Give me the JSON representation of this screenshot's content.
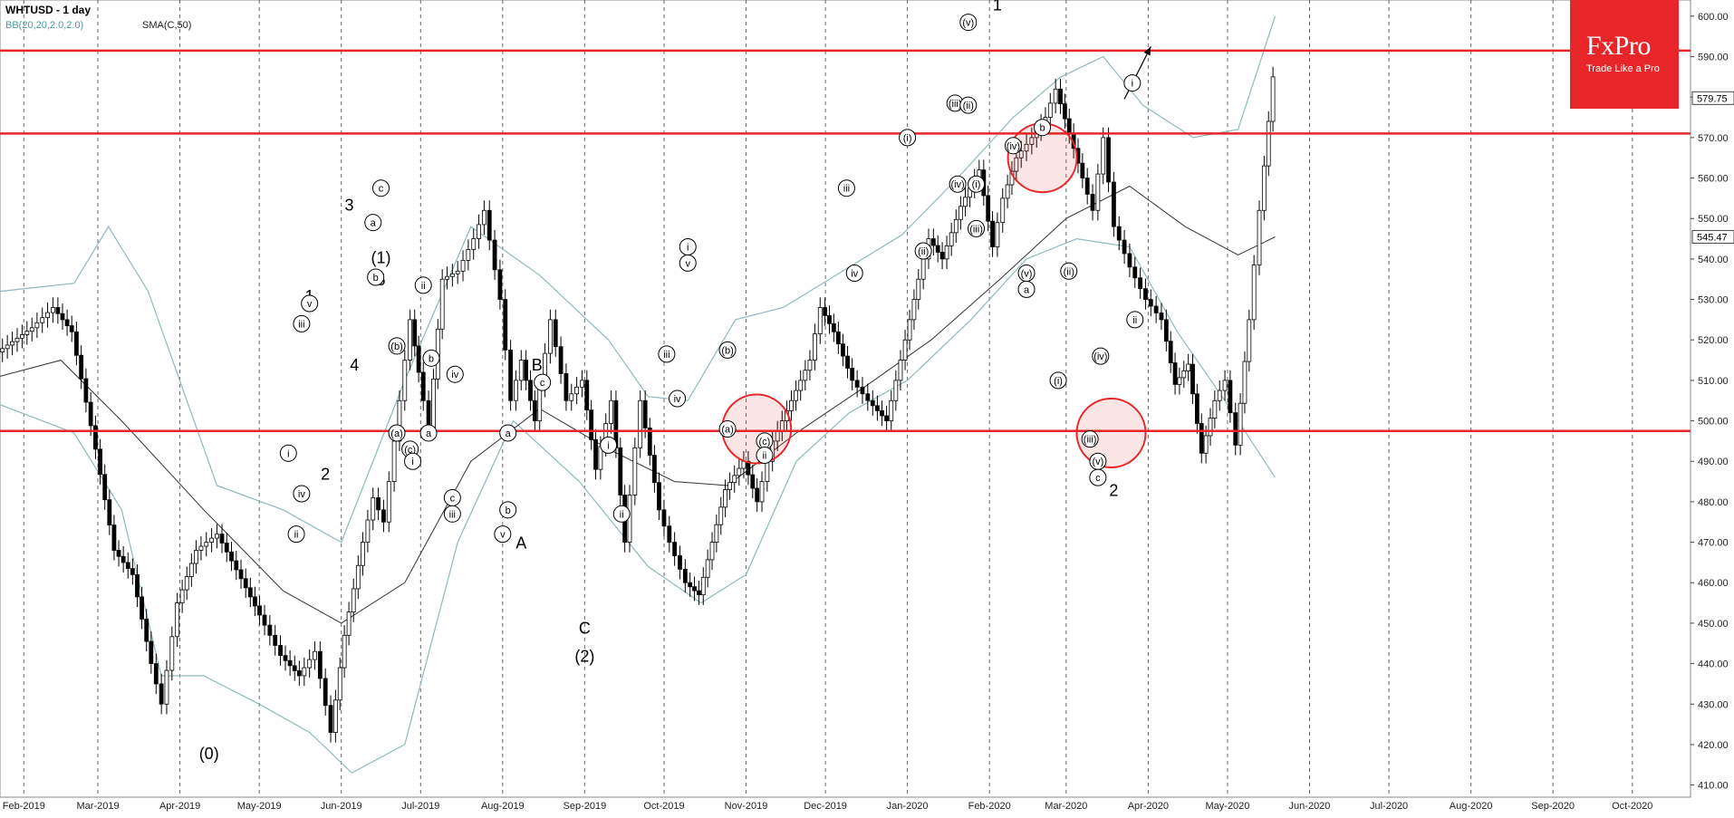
{
  "header": {
    "symbol": "WHTUSD",
    "timeframe_label": "WHTUSD - 1 day",
    "bb_label": "BB(20,20,2.0,2.0)",
    "sma_label": "SMA(C,50)"
  },
  "brand": {
    "name": "FxPro",
    "tagline": "Trade Like a Pro",
    "color": "#e8262a"
  },
  "chart_data": {
    "type": "line",
    "subtype": "candlestick",
    "title": "WHTUSD - 1 day",
    "xlabel": "",
    "ylabel": "",
    "ylim": [
      407,
      604
    ],
    "xlim": [
      "2019-01-23",
      "2020-10-23"
    ],
    "grid": true,
    "y_ticks": [
      "410.00",
      "420.00",
      "430.00",
      "440.00",
      "450.00",
      "460.00",
      "470.00",
      "480.00",
      "490.00",
      "500.00",
      "510.00",
      "520.00",
      "530.00",
      "540.00",
      "550.00",
      "560.00",
      "570.00",
      "580.00",
      "590.00",
      "600.00"
    ],
    "x_ticks": [
      "Feb-2019",
      "Mar-2019",
      "Apr-2019",
      "May-2019",
      "Jun-2019",
      "Jul-2019",
      "Aug-2019",
      "Sep-2019",
      "Oct-2019",
      "Nov-2019",
      "Dec-2019",
      "Jan-2020",
      "Feb-2020",
      "Mar-2020",
      "Apr-2020",
      "May-2020",
      "Jun-2020",
      "Jul-2020",
      "Aug-2020",
      "Sep-2020",
      "Oct-2020"
    ],
    "x_tick_dates": [
      "2019-02-01",
      "2019-03-01",
      "2019-04-01",
      "2019-05-01",
      "2019-06-01",
      "2019-07-01",
      "2019-08-01",
      "2019-09-01",
      "2019-10-01",
      "2019-11-01",
      "2019-12-01",
      "2020-01-01",
      "2020-02-01",
      "2020-03-01",
      "2020-04-01",
      "2020-05-01",
      "2020-06-01",
      "2020-07-01",
      "2020-08-01",
      "2020-09-01",
      "2020-10-01"
    ],
    "price_labels": [
      {
        "value": 579.75,
        "text": "579.75"
      },
      {
        "value": 545.47,
        "text": "545.47"
      }
    ],
    "horizontal_levels": [
      591.5,
      571,
      497.5
    ],
    "price_path": [
      [
        "2019-01-23",
        517
      ],
      [
        "2019-02-05",
        523
      ],
      [
        "2019-02-13",
        528
      ],
      [
        "2019-02-20",
        522
      ],
      [
        "2019-03-01",
        493
      ],
      [
        "2019-03-08",
        468
      ],
      [
        "2019-03-15",
        462
      ],
      [
        "2019-03-22",
        440
      ],
      [
        "2019-03-26",
        430
      ],
      [
        "2019-04-01",
        455
      ],
      [
        "2019-04-08",
        468
      ],
      [
        "2019-04-16",
        472
      ],
      [
        "2019-04-25",
        461
      ],
      [
        "2019-05-02",
        452
      ],
      [
        "2019-05-10",
        442
      ],
      [
        "2019-05-17",
        437
      ],
      [
        "2019-05-23",
        443
      ],
      [
        "2019-05-29",
        423
      ],
      [
        "2019-06-03",
        447
      ],
      [
        "2019-06-10",
        470
      ],
      [
        "2019-06-14",
        481
      ],
      [
        "2019-06-18",
        475
      ],
      [
        "2019-06-24",
        505
      ],
      [
        "2019-06-28",
        525
      ],
      [
        "2019-07-01",
        512
      ],
      [
        "2019-07-05",
        498
      ],
      [
        "2019-07-10",
        535
      ],
      [
        "2019-07-16",
        537
      ],
      [
        "2019-07-22",
        545
      ],
      [
        "2019-07-26",
        552
      ],
      [
        "2019-08-01",
        530
      ],
      [
        "2019-08-05",
        505
      ],
      [
        "2019-08-09",
        515
      ],
      [
        "2019-08-14",
        500
      ],
      [
        "2019-08-20",
        525
      ],
      [
        "2019-08-26",
        505
      ],
      [
        "2019-09-01",
        510
      ],
      [
        "2019-09-06",
        488
      ],
      [
        "2019-09-12",
        505
      ],
      [
        "2019-09-17",
        470
      ],
      [
        "2019-09-23",
        505
      ],
      [
        "2019-09-30",
        478
      ],
      [
        "2019-10-04",
        470
      ],
      [
        "2019-10-10",
        460
      ],
      [
        "2019-10-15",
        457
      ],
      [
        "2019-10-20",
        470
      ],
      [
        "2019-10-25",
        483
      ],
      [
        "2019-11-01",
        490
      ],
      [
        "2019-11-06",
        480
      ],
      [
        "2019-11-12",
        495
      ],
      [
        "2019-11-19",
        505
      ],
      [
        "2019-11-26",
        515
      ],
      [
        "2019-11-30",
        528
      ],
      [
        "2019-12-05",
        522
      ],
      [
        "2019-12-12",
        510
      ],
      [
        "2019-12-18",
        505
      ],
      [
        "2019-12-25",
        500
      ],
      [
        "2020-01-01",
        520
      ],
      [
        "2020-01-06",
        535
      ],
      [
        "2020-01-10",
        545
      ],
      [
        "2020-01-15",
        540
      ],
      [
        "2020-01-22",
        553
      ],
      [
        "2020-01-29",
        562
      ],
      [
        "2020-02-03",
        543
      ],
      [
        "2020-02-07",
        555
      ],
      [
        "2020-02-12",
        565
      ],
      [
        "2020-02-18",
        570
      ],
      [
        "2020-02-23",
        575
      ],
      [
        "2020-02-27",
        582
      ],
      [
        "2020-03-03",
        571
      ],
      [
        "2020-03-08",
        560
      ],
      [
        "2020-03-12",
        552
      ],
      [
        "2020-03-16",
        570
      ],
      [
        "2020-03-20",
        548
      ],
      [
        "2020-03-26",
        538
      ],
      [
        "2020-04-01",
        530
      ],
      [
        "2020-04-07",
        525
      ],
      [
        "2020-04-12",
        509
      ],
      [
        "2020-04-17",
        514
      ],
      [
        "2020-04-22",
        492
      ],
      [
        "2020-04-27",
        505
      ],
      [
        "2020-05-01",
        510
      ],
      [
        "2020-05-05",
        494
      ],
      [
        "2020-05-10",
        525
      ],
      [
        "2020-05-14",
        552
      ],
      [
        "2020-05-19",
        585
      ]
    ],
    "sma50": [
      [
        "2019-01-23",
        511
      ],
      [
        "2019-02-15",
        515
      ],
      [
        "2019-03-10",
        500
      ],
      [
        "2019-04-10",
        478
      ],
      [
        "2019-05-10",
        458
      ],
      [
        "2019-06-01",
        450
      ],
      [
        "2019-06-25",
        460
      ],
      [
        "2019-07-20",
        490
      ],
      [
        "2019-08-15",
        503
      ],
      [
        "2019-09-10",
        493
      ],
      [
        "2019-10-05",
        485
      ],
      [
        "2019-10-25",
        484
      ],
      [
        "2019-11-20",
        497
      ],
      [
        "2019-12-15",
        508
      ],
      [
        "2020-01-10",
        520
      ],
      [
        "2020-02-05",
        535
      ],
      [
        "2020-03-01",
        550
      ],
      [
        "2020-03-25",
        558
      ],
      [
        "2020-04-15",
        548
      ],
      [
        "2020-05-05",
        541
      ],
      [
        "2020-05-19",
        545.47
      ]
    ],
    "bb_upper": [
      [
        "2019-01-23",
        532
      ],
      [
        "2019-02-20",
        534
      ],
      [
        "2019-03-05",
        548
      ],
      [
        "2019-03-20",
        532
      ],
      [
        "2019-04-15",
        484
      ],
      [
        "2019-05-10",
        478
      ],
      [
        "2019-06-01",
        470
      ],
      [
        "2019-06-25",
        510
      ],
      [
        "2019-07-20",
        548
      ],
      [
        "2019-08-15",
        536
      ],
      [
        "2019-09-10",
        520
      ],
      [
        "2019-09-25",
        506
      ],
      [
        "2019-10-10",
        505
      ],
      [
        "2019-10-28",
        525
      ],
      [
        "2019-11-15",
        528
      ],
      [
        "2019-12-05",
        536
      ],
      [
        "2019-12-30",
        546
      ],
      [
        "2020-01-20",
        560
      ],
      [
        "2020-02-10",
        575
      ],
      [
        "2020-02-28",
        585
      ],
      [
        "2020-03-15",
        590
      ],
      [
        "2020-03-30",
        578
      ],
      [
        "2020-04-18",
        570
      ],
      [
        "2020-05-05",
        572
      ],
      [
        "2020-05-19",
        600
      ]
    ],
    "bb_lower": [
      [
        "2019-01-23",
        504
      ],
      [
        "2019-02-20",
        497
      ],
      [
        "2019-03-10",
        478
      ],
      [
        "2019-03-25",
        437
      ],
      [
        "2019-04-10",
        437
      ],
      [
        "2019-05-01",
        430
      ],
      [
        "2019-05-20",
        423
      ],
      [
        "2019-06-05",
        413
      ],
      [
        "2019-06-25",
        420
      ],
      [
        "2019-07-15",
        470
      ],
      [
        "2019-08-05",
        500
      ],
      [
        "2019-08-30",
        485
      ],
      [
        "2019-09-25",
        464
      ],
      [
        "2019-10-15",
        455
      ],
      [
        "2019-11-01",
        462
      ],
      [
        "2019-11-20",
        490
      ],
      [
        "2019-12-10",
        502
      ],
      [
        "2020-01-01",
        510
      ],
      [
        "2020-01-25",
        525
      ],
      [
        "2020-02-15",
        540
      ],
      [
        "2020-03-05",
        545
      ],
      [
        "2020-03-25",
        543
      ],
      [
        "2020-04-12",
        522
      ],
      [
        "2020-04-30",
        505
      ],
      [
        "2020-05-19",
        486
      ]
    ],
    "wave_labels": [
      {
        "date": "2019-06-16",
        "price": 540.5,
        "text": "(1)"
      },
      {
        "date": "2019-06-16",
        "price": 535.0,
        "text": "5"
      },
      {
        "date": "2019-06-04",
        "price": 553.5,
        "text": "3"
      },
      {
        "date": "2019-05-20",
        "price": 531.0,
        "text": "1"
      },
      {
        "date": "2019-06-06",
        "price": 514.0,
        "text": "4"
      },
      {
        "date": "2019-05-26",
        "price": 487.0,
        "text": "2"
      },
      {
        "date": "2019-04-12",
        "price": 418.0,
        "text": "(0)"
      },
      {
        "date": "2019-08-08",
        "price": 470.0,
        "text": "A"
      },
      {
        "date": "2019-08-14",
        "price": 514.0,
        "text": "B"
      },
      {
        "date": "2019-09-01",
        "price": 449.0,
        "text": "C"
      },
      {
        "date": "2019-09-01",
        "price": 442.0,
        "text": "(2)"
      },
      {
        "date": "2020-02-04",
        "price": 603.0,
        "text": "1"
      },
      {
        "date": "2020-03-19",
        "price": 483.0,
        "text": "2"
      }
    ],
    "circled_labels": [
      {
        "date": "2019-06-16",
        "price": 557.5,
        "text": "c"
      },
      {
        "date": "2019-06-13",
        "price": 549.0,
        "text": "a"
      },
      {
        "date": "2019-06-14",
        "price": 535.5,
        "text": "b"
      },
      {
        "date": "2019-05-20",
        "price": 529.0,
        "text": "v"
      },
      {
        "date": "2019-05-17",
        "price": 524.0,
        "text": "iii"
      },
      {
        "date": "2019-05-12",
        "price": 492.0,
        "text": "i"
      },
      {
        "date": "2019-05-15",
        "price": 472.0,
        "text": "ii"
      },
      {
        "date": "2019-05-17",
        "price": 482.0,
        "text": "iv"
      },
      {
        "date": "2019-07-02",
        "price": 533.5,
        "text": "ii"
      },
      {
        "date": "2019-06-22",
        "price": 518.5,
        "text": "(b)"
      },
      {
        "date": "2019-07-05",
        "price": 515.5,
        "text": "b"
      },
      {
        "date": "2019-06-22",
        "price": 497.0,
        "text": "(a)"
      },
      {
        "date": "2019-07-04",
        "price": 497.0,
        "text": "a"
      },
      {
        "date": "2019-06-27",
        "price": 493.0,
        "text": "(c)"
      },
      {
        "date": "2019-06-28",
        "price": 490.0,
        "text": "i"
      },
      {
        "date": "2019-07-14",
        "price": 511.5,
        "text": "iv"
      },
      {
        "date": "2019-07-13",
        "price": 481.0,
        "text": "c"
      },
      {
        "date": "2019-07-13",
        "price": 477.0,
        "text": "iii"
      },
      {
        "date": "2019-08-03",
        "price": 497.0,
        "text": "a"
      },
      {
        "date": "2019-08-03",
        "price": 478.0,
        "text": "b"
      },
      {
        "date": "2019-08-01",
        "price": 472.0,
        "text": "v"
      },
      {
        "date": "2019-08-16",
        "price": 509.5,
        "text": "c"
      },
      {
        "date": "2019-09-10",
        "price": 494.0,
        "text": "i"
      },
      {
        "date": "2019-09-15",
        "price": 477.0,
        "text": "ii"
      },
      {
        "date": "2019-10-02",
        "price": 516.5,
        "text": "iii"
      },
      {
        "date": "2019-10-06",
        "price": 505.5,
        "text": "iv"
      },
      {
        "date": "2019-10-10",
        "price": 543.0,
        "text": "i"
      },
      {
        "date": "2019-10-10",
        "price": 539.0,
        "text": "v"
      },
      {
        "date": "2019-10-25",
        "price": 517.5,
        "text": "(b)"
      },
      {
        "date": "2019-10-25",
        "price": 498.0,
        "text": "(a)"
      },
      {
        "date": "2019-11-08",
        "price": 495.0,
        "text": "(c)"
      },
      {
        "date": "2019-11-08",
        "price": 491.5,
        "text": "ii"
      },
      {
        "date": "2019-12-09",
        "price": 557.5,
        "text": "iii"
      },
      {
        "date": "2019-12-12",
        "price": 536.5,
        "text": "iv"
      },
      {
        "date": "2020-01-01",
        "price": 570.0,
        "text": "(i)"
      },
      {
        "date": "2020-01-07",
        "price": 542.0,
        "text": "(ii)"
      },
      {
        "date": "2020-01-19",
        "price": 578.5,
        "text": "(iii)"
      },
      {
        "date": "2020-01-20",
        "price": 558.5,
        "text": "(iv)"
      },
      {
        "date": "2020-01-24",
        "price": 578.0,
        "text": "(ii)"
      },
      {
        "date": "2020-01-27",
        "price": 558.5,
        "text": "(i)"
      },
      {
        "date": "2020-01-27",
        "price": 547.5,
        "text": "(iii)"
      },
      {
        "date": "2020-01-24",
        "price": 598.5,
        "text": "(v)"
      },
      {
        "date": "2020-02-10",
        "price": 568.0,
        "text": "(iv)"
      },
      {
        "date": "2020-02-21",
        "price": 572.5,
        "text": "b"
      },
      {
        "date": "2020-02-15",
        "price": 536.5,
        "text": "(v)"
      },
      {
        "date": "2020-02-15",
        "price": 532.5,
        "text": "a"
      },
      {
        "date": "2020-03-02",
        "price": 537.0,
        "text": "(ii)"
      },
      {
        "date": "2020-02-27",
        "price": 510.0,
        "text": "(i)"
      },
      {
        "date": "2020-03-14",
        "price": 516.0,
        "text": "(iv)"
      },
      {
        "date": "2020-03-10",
        "price": 495.5,
        "text": "(iii)"
      },
      {
        "date": "2020-03-13",
        "price": 490.0,
        "text": "(v)"
      },
      {
        "date": "2020-03-13",
        "price": 486.0,
        "text": "c"
      },
      {
        "date": "2020-03-26",
        "price": 583.5,
        "text": "i"
      },
      {
        "date": "2020-03-27",
        "price": 525.0,
        "text": "ii"
      }
    ],
    "circles": [
      {
        "date": "2019-11-05",
        "price": 498.0
      },
      {
        "date": "2020-02-21",
        "price": 565.0
      },
      {
        "date": "2020-03-18",
        "price": 497.0
      }
    ],
    "arrow": {
      "from": [
        "2020-03-23",
        579.5
      ],
      "to": [
        "2020-04-02",
        592.5
      ]
    }
  }
}
